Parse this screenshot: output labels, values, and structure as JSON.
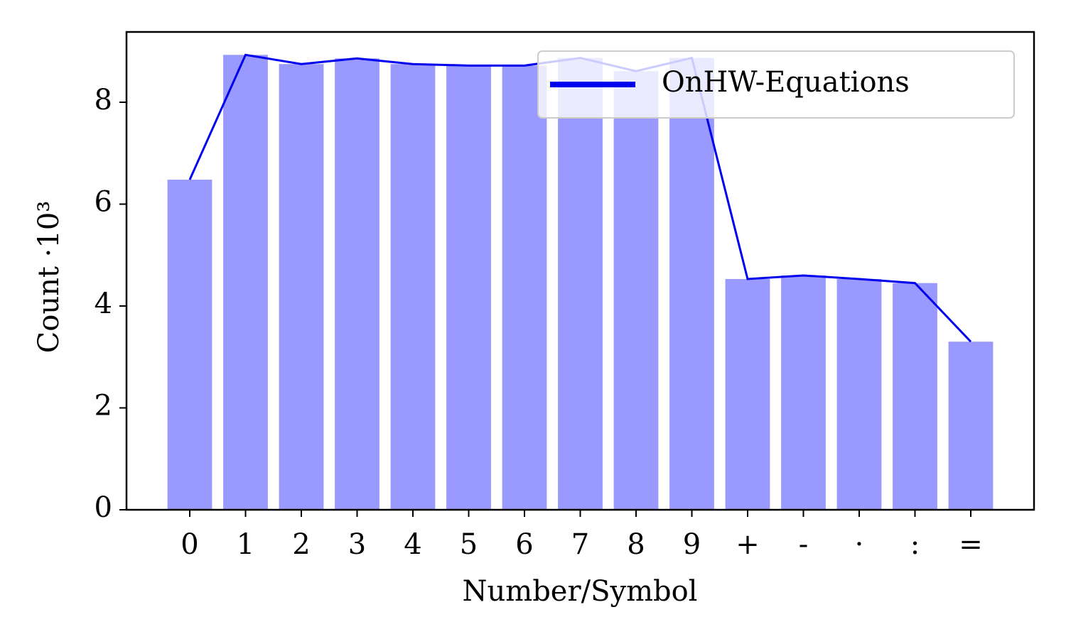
{
  "chart_data": {
    "type": "bar",
    "x_label": "Number/Symbol",
    "y_label": "Count ·10³",
    "categories": [
      "0",
      "1",
      "2",
      "3",
      "4",
      "5",
      "6",
      "7",
      "8",
      "9",
      "+",
      "-",
      "·",
      ":",
      "="
    ],
    "series": [
      {
        "name": "OnHW-Equations",
        "color": "#0000ee",
        "bar_color": "#9999ff",
        "values": [
          6.48,
          8.93,
          8.75,
          8.86,
          8.75,
          8.72,
          8.72,
          8.87,
          8.61,
          8.87,
          4.53,
          4.6,
          4.53,
          4.45,
          3.3
        ]
      }
    ],
    "ylim": [
      0,
      9.38
    ],
    "yticks": [
      0,
      2,
      4,
      6,
      8
    ],
    "grid": false,
    "legend": "upper right"
  }
}
